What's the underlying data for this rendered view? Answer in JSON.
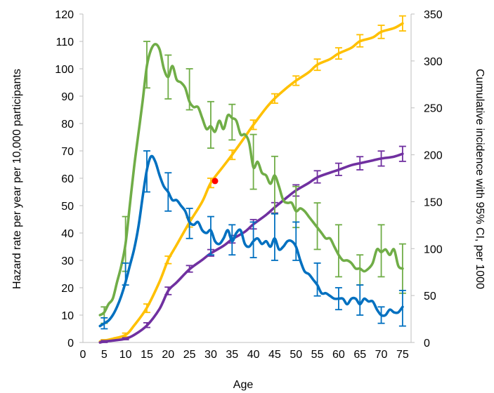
{
  "chart_data": {
    "type": "line",
    "xlabel": "Age",
    "ylabel_left": "Hazard rate per year per 10,000 participants",
    "ylabel_right": "Cumulative incidence with 95% CI, per 1000",
    "xlim": [
      0,
      77
    ],
    "ylim_left": [
      0,
      120
    ],
    "ylim_right": [
      0,
      350
    ],
    "x_ticks": [
      0,
      5,
      10,
      15,
      20,
      25,
      30,
      35,
      40,
      45,
      50,
      55,
      60,
      65,
      70,
      75
    ],
    "y_left_ticks": [
      0,
      10,
      20,
      30,
      40,
      50,
      60,
      70,
      80,
      90,
      100,
      110,
      120
    ],
    "y_right_ticks": [
      0,
      50,
      100,
      150,
      200,
      250,
      300,
      350
    ],
    "grid": false,
    "series": [
      {
        "axis": "left",
        "color": "#70ad47",
        "x": [
          4,
          5,
          6,
          7,
          8,
          9,
          10,
          11,
          12,
          13,
          14,
          15,
          16,
          17,
          18,
          19,
          20,
          21,
          22,
          23,
          24,
          25,
          26,
          27,
          28,
          29,
          30,
          31,
          32,
          33,
          34,
          35,
          36,
          37,
          38,
          39,
          40,
          41,
          42,
          43,
          44,
          45,
          46,
          47,
          48,
          49,
          50,
          51,
          52,
          53,
          54,
          55,
          56,
          57,
          58,
          59,
          60,
          61,
          62,
          63,
          64,
          65,
          66,
          67,
          68,
          69,
          70,
          71,
          72,
          73,
          74,
          75
        ],
        "y": [
          10,
          11,
          14,
          16,
          22,
          28,
          36,
          50,
          64,
          76,
          88,
          101,
          107,
          109,
          107,
          100,
          97,
          101,
          96,
          95,
          93,
          88,
          86,
          86,
          82,
          78,
          79,
          77,
          81,
          78,
          83,
          82,
          81,
          76,
          76,
          73,
          64,
          66,
          62,
          61,
          58,
          61,
          57,
          52,
          51,
          51,
          48,
          49,
          48,
          46,
          44,
          42,
          40,
          38,
          38,
          35,
          32,
          30,
          30,
          29,
          27,
          27,
          26,
          27,
          29,
          34,
          33,
          34,
          32,
          34,
          28,
          27
        ],
        "error_bars": [
          {
            "x": 5,
            "low": 7,
            "high": 13
          },
          {
            "x": 10,
            "low": 26,
            "high": 46
          },
          {
            "x": 15,
            "low": 93,
            "high": 110
          },
          {
            "x": 20,
            "low": 89,
            "high": 105
          },
          {
            "x": 25,
            "low": 85,
            "high": 100
          },
          {
            "x": 30,
            "low": 71,
            "high": 88
          },
          {
            "x": 35,
            "low": 74,
            "high": 87
          },
          {
            "x": 40,
            "low": 56,
            "high": 76
          },
          {
            "x": 45,
            "low": 47,
            "high": 68
          },
          {
            "x": 50,
            "low": 42,
            "high": 57
          },
          {
            "x": 55,
            "low": 34,
            "high": 51
          },
          {
            "x": 60,
            "low": 24,
            "high": 43
          },
          {
            "x": 65,
            "low": 21,
            "high": 32
          },
          {
            "x": 70,
            "low": 24,
            "high": 43
          },
          {
            "x": 75,
            "low": 18,
            "high": 36
          }
        ]
      },
      {
        "axis": "left",
        "color": "#0070c0",
        "x": [
          4,
          5,
          6,
          7,
          8,
          9,
          10,
          11,
          12,
          13,
          14,
          15,
          16,
          17,
          18,
          19,
          20,
          21,
          22,
          23,
          24,
          25,
          26,
          27,
          28,
          29,
          30,
          31,
          32,
          33,
          34,
          35,
          36,
          37,
          38,
          39,
          40,
          41,
          42,
          43,
          44,
          45,
          46,
          47,
          48,
          49,
          50,
          51,
          52,
          53,
          54,
          55,
          56,
          57,
          58,
          59,
          60,
          61,
          62,
          63,
          64,
          65,
          66,
          67,
          68,
          69,
          70,
          71,
          72,
          73,
          74,
          75
        ],
        "y": [
          6,
          7,
          8,
          10,
          13,
          17,
          22,
          28,
          34,
          42,
          53,
          63,
          68,
          66,
          61,
          57,
          55,
          52,
          52,
          50,
          48,
          44,
          43,
          44,
          41,
          40,
          41,
          37,
          36,
          38,
          41,
          37,
          40,
          41,
          36,
          35,
          37,
          38,
          36,
          37,
          35,
          38,
          34,
          35,
          37,
          37,
          35,
          30,
          26,
          25,
          23,
          21,
          18,
          18,
          17,
          16,
          16,
          16,
          14,
          16,
          16,
          14,
          16,
          15,
          15,
          12,
          10,
          10,
          12,
          11,
          11,
          13
        ],
        "error_bars": [
          {
            "x": 5,
            "low": 5,
            "high": 9
          },
          {
            "x": 10,
            "low": 21,
            "high": 29
          },
          {
            "x": 15,
            "low": 55,
            "high": 70
          },
          {
            "x": 20,
            "low": 48,
            "high": 62
          },
          {
            "x": 25,
            "low": 38,
            "high": 49
          },
          {
            "x": 30,
            "low": 32,
            "high": 46
          },
          {
            "x": 35,
            "low": 32,
            "high": 43
          },
          {
            "x": 40,
            "low": 31,
            "high": 44
          },
          {
            "x": 45,
            "low": 30,
            "high": 47
          },
          {
            "x": 50,
            "low": 30,
            "high": 44
          },
          {
            "x": 55,
            "low": 17,
            "high": 29
          },
          {
            "x": 60,
            "low": 12,
            "high": 20
          },
          {
            "x": 65,
            "low": 10,
            "high": 21
          },
          {
            "x": 70,
            "low": 7,
            "high": 13
          },
          {
            "x": 75,
            "low": 6,
            "high": 19
          }
        ]
      },
      {
        "axis": "right",
        "color": "#ffc000",
        "x": [
          4,
          5,
          7,
          10,
          12,
          15,
          18,
          20,
          22,
          25,
          28,
          30,
          33,
          35,
          38,
          40,
          43,
          45,
          48,
          50,
          53,
          55,
          58,
          60,
          63,
          65,
          68,
          70,
          73,
          75
        ],
        "y": [
          1,
          2,
          4,
          8,
          18,
          37,
          65,
          88,
          104,
          128,
          150,
          170,
          188,
          200,
          219,
          232,
          250,
          260,
          272,
          279,
          288,
          296,
          302,
          308,
          314,
          321,
          325,
          331,
          335,
          340
        ],
        "error_bars": [
          {
            "x": 5,
            "low": 1,
            "high": 3
          },
          {
            "x": 10,
            "low": 6,
            "high": 10
          },
          {
            "x": 15,
            "low": 32,
            "high": 41
          },
          {
            "x": 20,
            "low": 84,
            "high": 92
          },
          {
            "x": 25,
            "low": 123,
            "high": 133
          },
          {
            "x": 30,
            "low": 165,
            "high": 175
          },
          {
            "x": 35,
            "low": 195,
            "high": 205
          },
          {
            "x": 40,
            "low": 227,
            "high": 237
          },
          {
            "x": 45,
            "low": 255,
            "high": 265
          },
          {
            "x": 50,
            "low": 274,
            "high": 284
          },
          {
            "x": 55,
            "low": 290,
            "high": 302
          },
          {
            "x": 60,
            "low": 302,
            "high": 314
          },
          {
            "x": 65,
            "low": 315,
            "high": 328
          },
          {
            "x": 70,
            "low": 324,
            "high": 338
          },
          {
            "x": 75,
            "low": 332,
            "high": 348
          }
        ]
      },
      {
        "axis": "right",
        "color": "#7030a0",
        "x": [
          4,
          5,
          7,
          10,
          12,
          15,
          18,
          20,
          22,
          25,
          28,
          30,
          33,
          35,
          38,
          40,
          43,
          45,
          48,
          50,
          53,
          55,
          58,
          60,
          63,
          65,
          68,
          70,
          73,
          75
        ],
        "y": [
          0,
          1,
          2,
          4,
          8,
          18,
          36,
          55,
          64,
          78,
          88,
          95,
          103,
          110,
          118,
          126,
          136,
          144,
          155,
          162,
          170,
          176,
          181,
          184,
          189,
          191,
          194,
          196,
          198,
          201
        ],
        "error_bars": [
          {
            "x": 5,
            "low": 0,
            "high": 2
          },
          {
            "x": 10,
            "low": 3,
            "high": 5
          },
          {
            "x": 15,
            "low": 16,
            "high": 21
          },
          {
            "x": 20,
            "low": 51,
            "high": 59
          },
          {
            "x": 25,
            "low": 75,
            "high": 82
          },
          {
            "x": 30,
            "low": 92,
            "high": 99
          },
          {
            "x": 35,
            "low": 106,
            "high": 114
          },
          {
            "x": 40,
            "low": 121,
            "high": 131
          },
          {
            "x": 45,
            "low": 138,
            "high": 149
          },
          {
            "x": 50,
            "low": 156,
            "high": 168
          },
          {
            "x": 55,
            "low": 170,
            "high": 183
          },
          {
            "x": 60,
            "low": 178,
            "high": 191
          },
          {
            "x": 65,
            "low": 184,
            "high": 198
          },
          {
            "x": 70,
            "low": 188,
            "high": 204
          },
          {
            "x": 75,
            "low": 193,
            "high": 209
          }
        ]
      }
    ],
    "annotations": [
      {
        "type": "point",
        "x": 31,
        "axis": "left",
        "y": 59,
        "color": "#ff0000"
      }
    ]
  }
}
